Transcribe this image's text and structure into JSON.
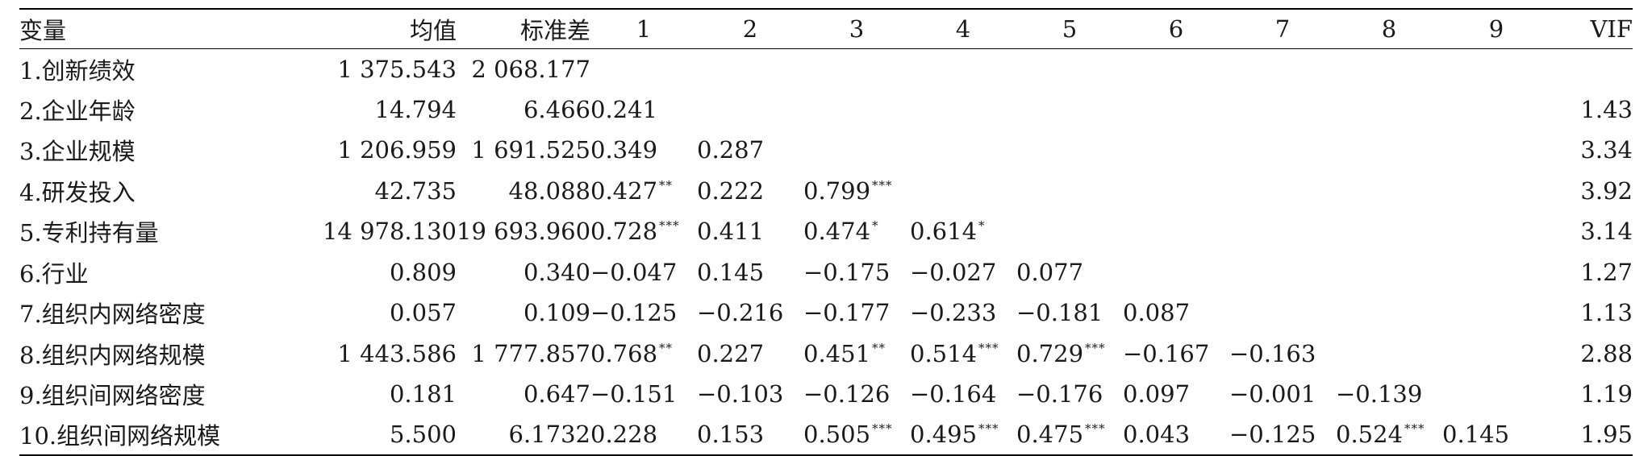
{
  "headers": {
    "variable": "变量",
    "mean": "均值",
    "sd": "标准差",
    "columns": [
      "1",
      "2",
      "3",
      "4",
      "5",
      "6",
      "7",
      "8",
      "9"
    ],
    "vif": "VIF"
  },
  "rows": [
    {
      "name": "1.创新绩效",
      "mean": "1 375.543",
      "sd": "2 068.177",
      "vif": "",
      "corr": []
    },
    {
      "name": "2.企业年龄",
      "mean": "14.794",
      "sd": "6.466",
      "vif": "1.43",
      "corr": [
        {
          "v": "0.241",
          "s": ""
        }
      ]
    },
    {
      "name": "3.企业规模",
      "mean": "1 206.959",
      "sd": "1 691.525",
      "vif": "3.34",
      "corr": [
        {
          "v": "0.349",
          "s": ""
        },
        {
          "v": "0.287",
          "s": ""
        }
      ]
    },
    {
      "name": "4.研发投入",
      "mean": "42.735",
      "sd": "48.088",
      "vif": "3.92",
      "corr": [
        {
          "v": "0.427",
          "s": "**"
        },
        {
          "v": "0.222",
          "s": ""
        },
        {
          "v": "0.799",
          "s": "***"
        }
      ]
    },
    {
      "name": "5.专利持有量",
      "mean": "14 978.130",
      "sd": "19 693.960",
      "vif": "3.14",
      "corr": [
        {
          "v": "0.728",
          "s": "***"
        },
        {
          "v": "0.411",
          "s": ""
        },
        {
          "v": "0.474",
          "s": "*"
        },
        {
          "v": "0.614",
          "s": "*"
        }
      ]
    },
    {
      "name": "6.行业",
      "mean": "0.809",
      "sd": "0.340",
      "vif": "1.27",
      "corr": [
        {
          "v": "−0.047",
          "s": ""
        },
        {
          "v": "0.145",
          "s": ""
        },
        {
          "v": "−0.175",
          "s": ""
        },
        {
          "v": "−0.027",
          "s": ""
        },
        {
          "v": "0.077",
          "s": ""
        }
      ]
    },
    {
      "name": "7.组织内网络密度",
      "mean": "0.057",
      "sd": "0.109",
      "vif": "1.13",
      "corr": [
        {
          "v": "−0.125",
          "s": ""
        },
        {
          "v": "−0.216",
          "s": ""
        },
        {
          "v": "−0.177",
          "s": ""
        },
        {
          "v": "−0.233",
          "s": ""
        },
        {
          "v": "−0.181",
          "s": ""
        },
        {
          "v": "0.087",
          "s": ""
        }
      ]
    },
    {
      "name": "8.组织内网络规模",
      "mean": "1 443.586",
      "sd": "1 777.857",
      "vif": "2.88",
      "corr": [
        {
          "v": "0.768",
          "s": "**"
        },
        {
          "v": "0.227",
          "s": ""
        },
        {
          "v": "0.451",
          "s": "**"
        },
        {
          "v": "0.514",
          "s": "***"
        },
        {
          "v": "0.729",
          "s": "***"
        },
        {
          "v": "−0.167",
          "s": ""
        },
        {
          "v": "−0.163",
          "s": ""
        }
      ]
    },
    {
      "name": "9.组织间网络密度",
      "mean": "0.181",
      "sd": "0.647",
      "vif": "1.19",
      "corr": [
        {
          "v": "−0.151",
          "s": ""
        },
        {
          "v": "−0.103",
          "s": ""
        },
        {
          "v": "−0.126",
          "s": ""
        },
        {
          "v": "−0.164",
          "s": ""
        },
        {
          "v": "−0.176",
          "s": ""
        },
        {
          "v": "0.097",
          "s": ""
        },
        {
          "v": "−0.001",
          "s": ""
        },
        {
          "v": "−0.139",
          "s": ""
        }
      ]
    },
    {
      "name": "10.组织间网络规模",
      "mean": "5.500",
      "sd": "6.1732",
      "vif": "1.95",
      "corr": [
        {
          "v": "0.228",
          "s": ""
        },
        {
          "v": "0.153",
          "s": ""
        },
        {
          "v": "0.505",
          "s": "***"
        },
        {
          "v": "0.495",
          "s": "***"
        },
        {
          "v": "0.475",
          "s": "***"
        },
        {
          "v": "0.043",
          "s": ""
        },
        {
          "v": "−0.125",
          "s": ""
        },
        {
          "v": "0.524",
          "s": "***"
        },
        {
          "v": "0.145",
          "s": ""
        }
      ]
    }
  ]
}
